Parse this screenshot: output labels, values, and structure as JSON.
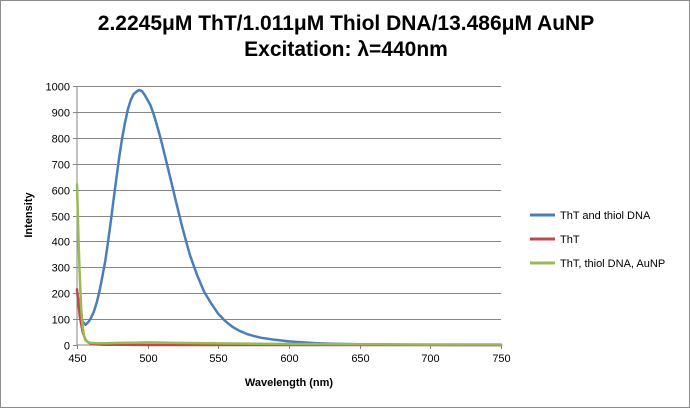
{
  "chart_data": {
    "type": "line",
    "title_line1": "2.2245μM ThT/1.011μM Thiol DNA/13.486μM AuNP",
    "title_line2": "Excitation: λ=440nm",
    "xlabel": "Wavelength (nm)",
    "ylabel": "Intensity",
    "xlim": [
      450,
      750
    ],
    "ylim": [
      0,
      1000
    ],
    "xticks": [
      450,
      500,
      550,
      600,
      650,
      700,
      750
    ],
    "yticks": [
      0,
      100,
      200,
      300,
      400,
      500,
      600,
      700,
      800,
      900,
      1000
    ],
    "grid": "horizontal",
    "legend_position": "right",
    "series": [
      {
        "name": "ThT and thiol DNA",
        "color": "#4a7ebb",
        "x": [
          450,
          452,
          454,
          456,
          458,
          460,
          462,
          464,
          466,
          468,
          470,
          472,
          474,
          476,
          478,
          480,
          482,
          484,
          486,
          488,
          490,
          492,
          494,
          496,
          498,
          500,
          502,
          504,
          506,
          508,
          510,
          512,
          514,
          516,
          518,
          520,
          522,
          524,
          526,
          528,
          530,
          535,
          540,
          545,
          550,
          555,
          560,
          565,
          570,
          575,
          580,
          590,
          600,
          610,
          620,
          630,
          640,
          650,
          660,
          680,
          700,
          725,
          750
        ],
        "values": [
          210,
          130,
          90,
          78,
          88,
          105,
          130,
          165,
          210,
          265,
          325,
          400,
          480,
          565,
          650,
          730,
          800,
          860,
          910,
          945,
          968,
          978,
          984,
          980,
          965,
          945,
          925,
          895,
          860,
          820,
          780,
          735,
          690,
          645,
          600,
          555,
          510,
          465,
          425,
          385,
          345,
          270,
          205,
          160,
          120,
          92,
          70,
          55,
          43,
          35,
          28,
          20,
          14,
          10,
          7,
          5,
          4,
          3,
          2,
          1,
          1,
          0,
          0
        ]
      },
      {
        "name": "ThT",
        "color": "#be4b48",
        "x": [
          450,
          452,
          454,
          456,
          458,
          460,
          465,
          470,
          480,
          500,
          550,
          600,
          650,
          700,
          750
        ],
        "values": [
          215,
          110,
          50,
          20,
          10,
          5,
          2,
          1,
          1,
          0,
          0,
          0,
          0,
          0,
          0
        ]
      },
      {
        "name": "ThT, thiol DNA, AuNP",
        "color": "#98b954",
        "x": [
          450,
          451,
          452,
          453,
          454,
          455,
          456,
          458,
          460,
          465,
          470,
          480,
          490,
          500,
          520,
          550,
          600,
          650,
          700,
          750
        ],
        "values": [
          620,
          420,
          260,
          140,
          70,
          35,
          18,
          10,
          8,
          7,
          7,
          8,
          9,
          10,
          8,
          6,
          4,
          3,
          2,
          2
        ]
      }
    ]
  }
}
